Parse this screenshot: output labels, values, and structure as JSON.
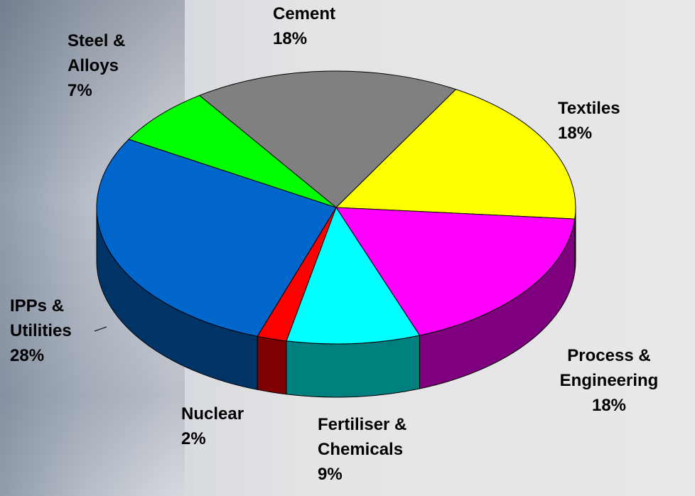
{
  "chart_data": {
    "type": "pie",
    "categories": [
      "Cement",
      "Textiles",
      "Process & Engineering",
      "Fertiliser & Chemicals",
      "Nuclear",
      "IPPs & Utilities",
      "Steel & Alloys"
    ],
    "values": [
      18,
      18,
      18,
      9,
      2,
      28,
      7
    ],
    "value_labels": [
      "18%",
      "18%",
      "18%",
      "9%",
      "2%",
      "28%",
      "7%"
    ],
    "colors": [
      "#808080",
      "#ffff00",
      "#ff00ff",
      "#00ffff",
      "#ff0000",
      "#0066cc",
      "#00ff00"
    ]
  }
}
